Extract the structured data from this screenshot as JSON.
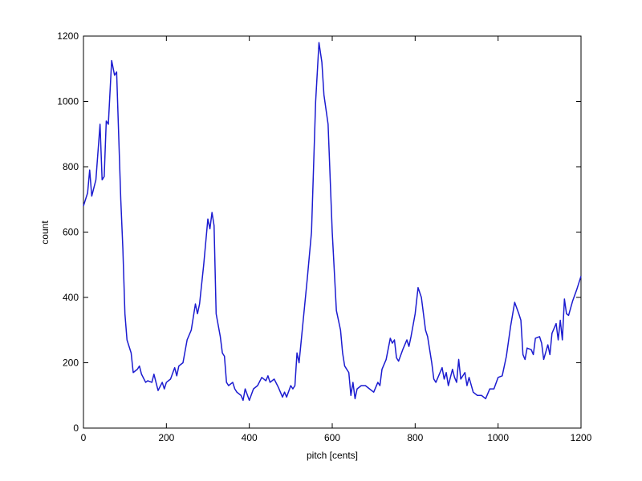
{
  "chart_data": {
    "type": "line",
    "xlabel": "pitch [cents]",
    "ylabel": "count",
    "xlim": [
      0,
      1200
    ],
    "xticks": [
      0,
      200,
      400,
      600,
      800,
      1000,
      1200
    ],
    "ylim": [
      0,
      1200
    ],
    "yticks": [
      0,
      200,
      400,
      600,
      800,
      1000,
      1200
    ],
    "grid": false,
    "x": [
      0,
      10,
      15,
      20,
      30,
      40,
      45,
      50,
      55,
      60,
      68,
      75,
      80,
      90,
      95,
      100,
      105,
      110,
      115,
      120,
      130,
      135,
      140,
      150,
      155,
      165,
      170,
      180,
      190,
      195,
      200,
      210,
      220,
      225,
      230,
      240,
      250,
      260,
      270,
      275,
      280,
      290,
      300,
      305,
      310,
      315,
      320,
      330,
      335,
      340,
      345,
      350,
      360,
      365,
      370,
      380,
      385,
      390,
      400,
      410,
      420,
      430,
      440,
      445,
      450,
      460,
      470,
      480,
      485,
      490,
      500,
      505,
      510,
      515,
      520,
      530,
      540,
      550,
      560,
      568,
      575,
      580,
      590,
      600,
      610,
      620,
      625,
      630,
      640,
      645,
      650,
      655,
      660,
      670,
      680,
      690,
      700,
      710,
      715,
      720,
      730,
      740,
      745,
      750,
      755,
      760,
      770,
      780,
      785,
      790,
      800,
      807,
      815,
      825,
      830,
      840,
      845,
      850,
      860,
      865,
      870,
      875,
      880,
      890,
      895,
      900,
      905,
      910,
      920,
      925,
      930,
      940,
      950,
      960,
      970,
      980,
      990,
      1000,
      1010,
      1020,
      1030,
      1040,
      1050,
      1055,
      1060,
      1065,
      1070,
      1080,
      1085,
      1090,
      1100,
      1105,
      1110,
      1120,
      1125,
      1130,
      1140,
      1145,
      1150,
      1155,
      1160,
      1165,
      1170,
      1180,
      1190,
      1200
    ],
    "series": [
      {
        "color": "#1c1cd0",
        "values": [
          680,
          720,
          790,
          710,
          760,
          930,
          760,
          770,
          940,
          930,
          1125,
          1080,
          1090,
          700,
          550,
          350,
          270,
          250,
          230,
          170,
          180,
          190,
          165,
          140,
          145,
          140,
          165,
          115,
          140,
          120,
          140,
          150,
          185,
          160,
          190,
          200,
          270,
          300,
          380,
          350,
          380,
          500,
          640,
          610,
          660,
          620,
          350,
          280,
          230,
          220,
          140,
          130,
          140,
          120,
          110,
          100,
          85,
          120,
          85,
          120,
          130,
          155,
          145,
          160,
          140,
          150,
          125,
          95,
          110,
          95,
          130,
          120,
          130,
          230,
          200,
          330,
          460,
          600,
          1000,
          1180,
          1120,
          1020,
          930,
          600,
          360,
          300,
          230,
          190,
          170,
          100,
          140,
          90,
          120,
          130,
          130,
          120,
          110,
          140,
          130,
          180,
          210,
          275,
          260,
          270,
          215,
          205,
          240,
          270,
          250,
          280,
          350,
          430,
          400,
          300,
          280,
          200,
          150,
          140,
          170,
          185,
          150,
          170,
          130,
          180,
          155,
          140,
          210,
          150,
          170,
          130,
          155,
          110,
          100,
          100,
          90,
          120,
          120,
          155,
          160,
          220,
          310,
          385,
          350,
          330,
          225,
          210,
          245,
          240,
          225,
          275,
          280,
          260,
          210,
          255,
          225,
          290,
          320,
          270,
          330,
          270,
          395,
          350,
          345,
          390,
          425,
          465
        ]
      }
    ]
  }
}
